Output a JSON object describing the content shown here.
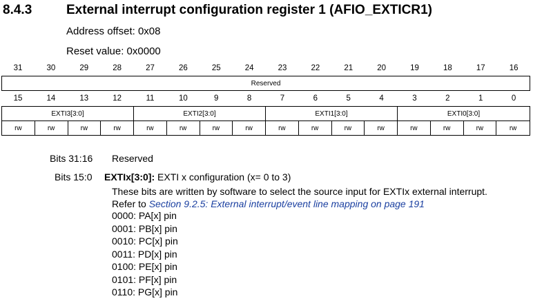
{
  "section": {
    "number": "8.4.3",
    "title": "External interrupt configuration register 1 (AFIO_EXTICR1)",
    "address_offset": "Address offset: 0x08",
    "reset_value": "Reset value: 0x0000"
  },
  "register": {
    "upper_bits": [
      "31",
      "30",
      "29",
      "28",
      "27",
      "26",
      "25",
      "24",
      "23",
      "22",
      "21",
      "20",
      "19",
      "18",
      "17",
      "16"
    ],
    "lower_bits": [
      "15",
      "14",
      "13",
      "12",
      "11",
      "10",
      "9",
      "8",
      "7",
      "6",
      "5",
      "4",
      "3",
      "2",
      "1",
      "0"
    ],
    "upper_field": "Reserved",
    "lower_fields": [
      "EXTI3[3:0]",
      "EXTI2[3:0]",
      "EXTI1[3:0]",
      "EXTI0[3:0]"
    ],
    "access": [
      "rw",
      "rw",
      "rw",
      "rw",
      "rw",
      "rw",
      "rw",
      "rw",
      "rw",
      "rw",
      "rw",
      "rw",
      "rw",
      "rw",
      "rw",
      "rw"
    ]
  },
  "description": {
    "reserved_bits": "Bits 31:16",
    "reserved_text": "Reserved",
    "field_bits": "Bits 15:0",
    "field_name": "EXTIx[3:0]:",
    "field_summary": "EXTI x configuration (x= 0 to 3)",
    "para1": "These bits are written by software to select the source input for EXTIx external interrupt.",
    "refer_prefix": "Refer to",
    "refer_link": "Section 9.2.5: External interrupt/event line mapping on page 191",
    "options": [
      "0000: PA[x] pin",
      "0001: PB[x] pin",
      "0010: PC[x] pin",
      "0011: PD[x] pin",
      "0100: PE[x] pin",
      "0101: PF[x] pin",
      "0110: PG[x] pin"
    ]
  }
}
